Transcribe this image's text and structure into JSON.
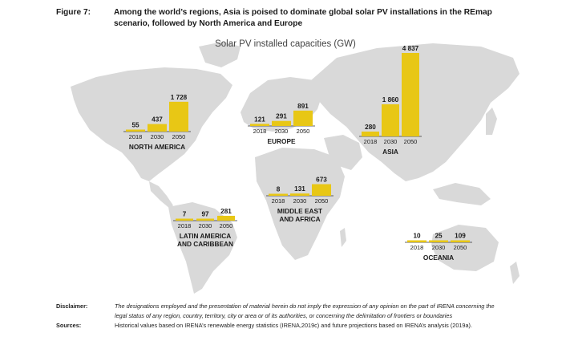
{
  "figure": {
    "label": "Figure 7:",
    "title": "Among the world’s regions, Asia is poised to dominate global solar PV installations in the REmap scenario, followed by North America and Europe"
  },
  "chart_data": {
    "type": "bar",
    "title": "Solar PV installed capacities (GW)",
    "categories": [
      "2018",
      "2030",
      "2050"
    ],
    "colors": {
      "bar": "#e8c715",
      "map": "#d9d9d9",
      "axis": "#333333"
    },
    "regions": [
      {
        "name": [
          "NORTH AMERICA"
        ],
        "values": [
          55,
          437,
          1728
        ],
        "value_labels": [
          "55",
          "437",
          "1 728"
        ]
      },
      {
        "name": [
          "EUROPE"
        ],
        "values": [
          121,
          291,
          891
        ],
        "value_labels": [
          "121",
          "291",
          "891"
        ]
      },
      {
        "name": [
          "ASIA"
        ],
        "values": [
          280,
          1860,
          4837
        ],
        "value_labels": [
          "280",
          "1 860",
          "4 837"
        ]
      },
      {
        "name": [
          "MIDDLE EAST",
          "AND AFRICA"
        ],
        "values": [
          8,
          131,
          673
        ],
        "value_labels": [
          "8",
          "131",
          "673"
        ]
      },
      {
        "name": [
          "LATIN AMERICA",
          "AND CARIBBEAN"
        ],
        "values": [
          7,
          97,
          281
        ],
        "value_labels": [
          "7",
          "97",
          "281"
        ]
      },
      {
        "name": [
          "OCEANIA"
        ],
        "values": [
          10,
          25,
          109
        ],
        "value_labels": [
          "10",
          "25",
          "109"
        ]
      }
    ]
  },
  "notes": {
    "disclaimer_label": "Disclaimer:",
    "disclaimer_text": "The designations employed and the presentation of material herein do not imply the expression of any opinion on the part of IRENA concerning the legal status of any region, country, territory, city or area or of its authorities, or concerning the delimitation of frontiers or boundaries",
    "sources_label": "Sources:",
    "sources_text": "Historical values based on IRENA’s renewable energy statistics (IRENA,2019c) and future projections based on IRENA’s analysis (2019a)."
  }
}
